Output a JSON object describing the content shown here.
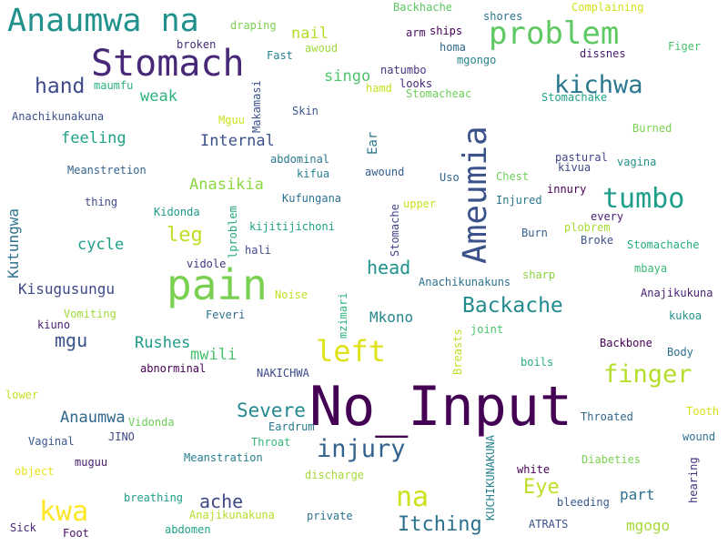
{
  "word_cloud": {
    "words": [
      {
        "text": "No_Input",
        "color": "#440154"
      },
      {
        "text": "pain",
        "color": "#7ad151"
      },
      {
        "text": "Stomach",
        "color": "#482878"
      },
      {
        "text": "Anaumwa na",
        "color": "#21918c"
      },
      {
        "text": "problem",
        "color": "#5ec962"
      },
      {
        "text": "Ameumia",
        "color": "#3b528b"
      },
      {
        "text": "left",
        "color": "#dde318"
      },
      {
        "text": "tumbo",
        "color": "#1f9e89"
      },
      {
        "text": "kwa",
        "color": "#fde725"
      },
      {
        "text": "na",
        "color": "#cde11d"
      },
      {
        "text": "kichwa",
        "color": "#2a788e"
      },
      {
        "text": "finger",
        "color": "#b5de2b"
      },
      {
        "text": "injury",
        "color": "#33638d"
      },
      {
        "text": "hand",
        "color": "#3e4a89"
      },
      {
        "text": "Backache",
        "color": "#238a8d"
      },
      {
        "text": "Itching",
        "color": "#2c728e"
      },
      {
        "text": "Eye",
        "color": "#bddf26"
      },
      {
        "text": "leg",
        "color": "#c0df25"
      },
      {
        "text": "Severe",
        "color": "#23898e"
      },
      {
        "text": "head",
        "color": "#20928c"
      },
      {
        "text": "ache",
        "color": "#3e4989"
      },
      {
        "text": "mgu",
        "color": "#3a548c"
      },
      {
        "text": "Anaumwa",
        "color": "#31688e"
      },
      {
        "text": "Rushes",
        "color": "#1f9a8a"
      },
      {
        "text": "mwili",
        "color": "#4ac16d"
      },
      {
        "text": "feeling",
        "color": "#1fa187"
      },
      {
        "text": "Internal",
        "color": "#3b528b"
      },
      {
        "text": "Anasikia",
        "color": "#8fd744"
      },
      {
        "text": "cycle",
        "color": "#1f9f88"
      },
      {
        "text": "weak",
        "color": "#2db27d"
      },
      {
        "text": "nail",
        "color": "#b5de2b"
      },
      {
        "text": "singo",
        "color": "#4ec36b"
      },
      {
        "text": "Mkono",
        "color": "#25848e"
      },
      {
        "text": "Kisugusungu",
        "color": "#3e4a89"
      },
      {
        "text": "part",
        "color": "#2d708e"
      },
      {
        "text": "mgogo",
        "color": "#a5db36"
      },
      {
        "text": "Kutungwa",
        "color": "#2c728e"
      },
      {
        "text": "Backhache",
        "color": "#5ec962"
      },
      {
        "text": "Complaining",
        "color": "#d2e21b"
      },
      {
        "text": "shores",
        "color": "#2c728e"
      },
      {
        "text": "arm",
        "color": "#471063"
      },
      {
        "text": "ships",
        "color": "#440154"
      },
      {
        "text": "dissnes",
        "color": "#481b6d"
      },
      {
        "text": "Figer",
        "color": "#4ac16d"
      },
      {
        "text": "draping",
        "color": "#7ad151"
      },
      {
        "text": "broken",
        "color": "#472d7b"
      },
      {
        "text": "awoud",
        "color": "#a0da39"
      },
      {
        "text": "homa",
        "color": "#31688e"
      },
      {
        "text": "mgongo",
        "color": "#25848e"
      },
      {
        "text": "Fast",
        "color": "#26828e"
      },
      {
        "text": "natumbo",
        "color": "#46327e"
      },
      {
        "text": "looks",
        "color": "#482878"
      },
      {
        "text": "hamd",
        "color": "#c8e020"
      },
      {
        "text": "Stomacheac",
        "color": "#6ece58"
      },
      {
        "text": "Stomachake",
        "color": "#1fa188"
      },
      {
        "text": "maumfu",
        "color": "#2db27d"
      },
      {
        "text": "Anachikunakuna",
        "color": "#3b528b"
      },
      {
        "text": "Mguu",
        "color": "#cde11d"
      },
      {
        "text": "Makamasi",
        "color": "#3b528b"
      },
      {
        "text": "Skin",
        "color": "#3a548c"
      },
      {
        "text": "Burned",
        "color": "#7ad151"
      },
      {
        "text": "abdominal",
        "color": "#2a788e"
      },
      {
        "text": "kifua",
        "color": "#26828e"
      },
      {
        "text": "Ear",
        "color": "#2a788e"
      },
      {
        "text": "awound",
        "color": "#365c8d"
      },
      {
        "text": "pastural",
        "color": "#414487"
      },
      {
        "text": "kivua",
        "color": "#3e4989"
      },
      {
        "text": "vagina",
        "color": "#21918c"
      },
      {
        "text": "Meanstretion",
        "color": "#33638d"
      },
      {
        "text": "thing",
        "color": "#3e4989"
      },
      {
        "text": "Kidonda",
        "color": "#1f9a8a"
      },
      {
        "text": "Kufungana",
        "color": "#2d708e"
      },
      {
        "text": "upper",
        "color": "#cde11d"
      },
      {
        "text": "Uso",
        "color": "#33638d"
      },
      {
        "text": "Chest",
        "color": "#6ece58"
      },
      {
        "text": "Injured",
        "color": "#2a788e"
      },
      {
        "text": "innury",
        "color": "#440154"
      },
      {
        "text": "every",
        "color": "#482173"
      },
      {
        "text": "plobrem",
        "color": "#a8db34"
      },
      {
        "text": "Broke",
        "color": "#3b528b"
      },
      {
        "text": "Stomachache",
        "color": "#25ab82"
      },
      {
        "text": "kijitijichoni",
        "color": "#20a386"
      },
      {
        "text": "lproblem",
        "color": "#22a884"
      },
      {
        "text": "hali",
        "color": "#3e4989"
      },
      {
        "text": "Stomache",
        "color": "#414487"
      },
      {
        "text": "Burn",
        "color": "#355f8d"
      },
      {
        "text": "mbaya",
        "color": "#35b779"
      },
      {
        "text": "vidole",
        "color": "#46337e"
      },
      {
        "text": "Anachikunakuns",
        "color": "#2c728e"
      },
      {
        "text": "sharp",
        "color": "#8bd646"
      },
      {
        "text": "Anajikukuna",
        "color": "#482173"
      },
      {
        "text": "Noise",
        "color": "#c2df23"
      },
      {
        "text": "mzimari",
        "color": "#2fb47c"
      },
      {
        "text": "Feveri",
        "color": "#2e6e8e"
      },
      {
        "text": "kukoa",
        "color": "#21918c"
      },
      {
        "text": "kiuno",
        "color": "#482173"
      },
      {
        "text": "Vomiting",
        "color": "#a2da37"
      },
      {
        "text": "Breasts",
        "color": "#c0df25"
      },
      {
        "text": "joint",
        "color": "#4ac16d"
      },
      {
        "text": "Backbone",
        "color": "#440154"
      },
      {
        "text": "Body",
        "color": "#2d708e"
      },
      {
        "text": "abnorminal",
        "color": "#440154"
      },
      {
        "text": "NAKICHWA",
        "color": "#3e4989"
      },
      {
        "text": "boils",
        "color": "#26ad81"
      },
      {
        "text": "lower",
        "color": "#c8e020"
      },
      {
        "text": "Vidonda",
        "color": "#6ece58"
      },
      {
        "text": "Throated",
        "color": "#31688e"
      },
      {
        "text": "Tooth",
        "color": "#d8e219"
      },
      {
        "text": "Eardrum",
        "color": "#2a788e"
      },
      {
        "text": "Vaginal",
        "color": "#39568c"
      },
      {
        "text": "JINO",
        "color": "#3e4989"
      },
      {
        "text": "Throat",
        "color": "#35b779"
      },
      {
        "text": "KUCHIKUNAKUNA",
        "color": "#26828e"
      },
      {
        "text": "wound",
        "color": "#2c728e"
      },
      {
        "text": "muguu",
        "color": "#482173"
      },
      {
        "text": "Meanstration",
        "color": "#277f8e"
      },
      {
        "text": "Diabeties",
        "color": "#7ad151"
      },
      {
        "text": "object",
        "color": "#e5e419"
      },
      {
        "text": "discharge",
        "color": "#a5db36"
      },
      {
        "text": "white",
        "color": "#440154"
      },
      {
        "text": "hearing",
        "color": "#46337e"
      },
      {
        "text": "breathing",
        "color": "#1f9e89"
      },
      {
        "text": "bleeding",
        "color": "#38598c"
      },
      {
        "text": "Anajikunakuna",
        "color": "#b5de2b"
      },
      {
        "text": "Sick",
        "color": "#482878"
      },
      {
        "text": "Foot",
        "color": "#471164"
      },
      {
        "text": "abdomen",
        "color": "#1fa187"
      },
      {
        "text": "private",
        "color": "#2c728e"
      },
      {
        "text": "ATRATS",
        "color": "#3b528b"
      }
    ]
  }
}
